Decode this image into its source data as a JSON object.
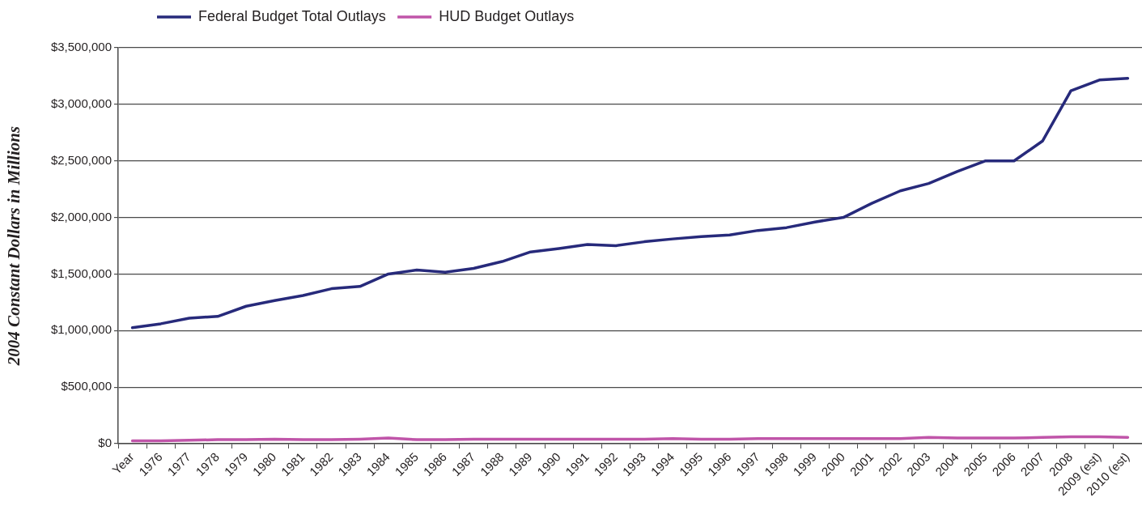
{
  "chart_data": {
    "type": "line",
    "categories": [
      "Year",
      "1976",
      "1977",
      "1978",
      "1979",
      "1980",
      "1981",
      "1982",
      "1983",
      "1984",
      "1985",
      "1986",
      "1987",
      "1988",
      "1989",
      "1990",
      "1991",
      "1992",
      "1993",
      "1994",
      "1995",
      "1996",
      "1997",
      "1998",
      "1999",
      "2000",
      "2001",
      "2002",
      "2003",
      "2004",
      "2005",
      "2006",
      "2007",
      "2008",
      "2009 (est)",
      "2010 (est)"
    ],
    "series": [
      {
        "name": "Federal Budget Total Outlays",
        "color": "#272a7b",
        "values": [
          1025000,
          1060000,
          1110000,
          1125000,
          1215000,
          1265000,
          1310000,
          1370000,
          1390000,
          1500000,
          1535000,
          1515000,
          1550000,
          1610000,
          1695000,
          1725000,
          1760000,
          1750000,
          1785000,
          1810000,
          1830000,
          1845000,
          1885000,
          1910000,
          1960000,
          2000000,
          2125000,
          2235000,
          2300000,
          2405000,
          2500000,
          2500000,
          2675000,
          3120000,
          3215000,
          3230000
        ]
      },
      {
        "name": "HUD Budget Outlays",
        "color": "#c055a9",
        "values": [
          25000,
          25000,
          30000,
          35000,
          35000,
          40000,
          35000,
          35000,
          40000,
          50000,
          35000,
          35000,
          40000,
          40000,
          40000,
          40000,
          40000,
          40000,
          40000,
          45000,
          40000,
          40000,
          45000,
          45000,
          45000,
          45000,
          45000,
          45000,
          55000,
          50000,
          50000,
          50000,
          55000,
          60000,
          60000,
          55000
        ]
      }
    ],
    "ylabel": "2004 Constant Dollars in Millions",
    "ylim": [
      0,
      3500000
    ],
    "yticks": [
      {
        "value": 0,
        "label": "$0"
      },
      {
        "value": 500000,
        "label": "$500,000"
      },
      {
        "value": 1000000,
        "label": "$1,000,000"
      },
      {
        "value": 1500000,
        "label": "$1,500,000"
      },
      {
        "value": 2000000,
        "label": "$2,000,000"
      },
      {
        "value": 2500000,
        "label": "$2,500,000"
      },
      {
        "value": 3000000,
        "label": "$3,000,000"
      },
      {
        "value": 3500000,
        "label": "$3,500,000"
      }
    ],
    "grid": "y",
    "legend": "top left",
    "marker": "none",
    "line_style": "solid"
  }
}
